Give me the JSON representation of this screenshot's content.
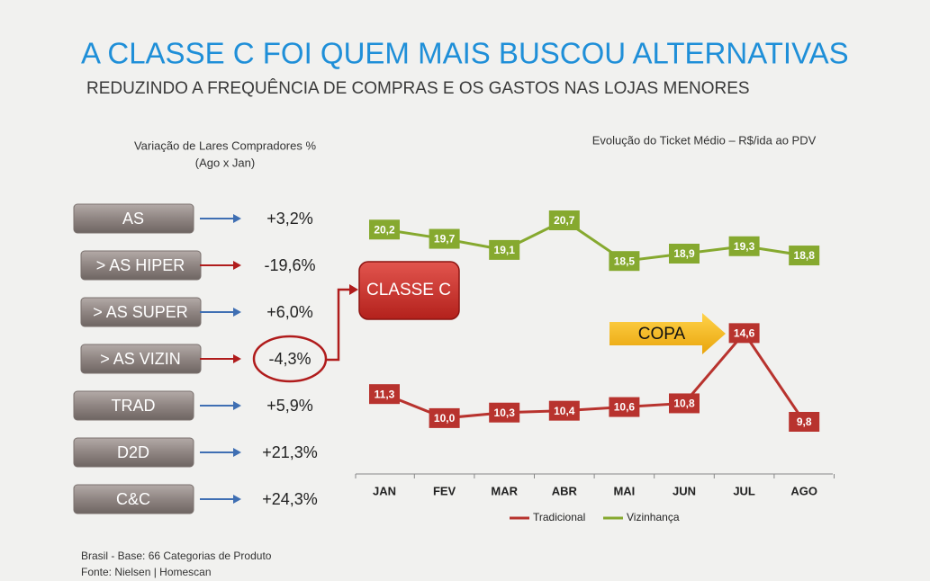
{
  "header": {
    "title": "A CLASSE C FOI QUEM MAIS BUSCOU ALTERNATIVAS",
    "subtitle": "REDUZINDO A FREQUÊNCIA DE COMPRAS E OS GASTOS  NAS LOJAS MENORES"
  },
  "left_panel": {
    "title": "Variação de Lares Compradores %",
    "subtitle": "(Ago x Jan)",
    "items": [
      {
        "label": "AS",
        "value": "+3,2%",
        "arrow_color": "#3f6fb3"
      },
      {
        "label": "> AS HIPER",
        "value": "-19,6%",
        "arrow_color": "#b01c1c"
      },
      {
        "label": "> AS SUPER",
        "value": "+6,0%",
        "arrow_color": "#3f6fb3"
      },
      {
        "label": "> AS VIZIN",
        "value": "-4,3%",
        "arrow_color": "#b01c1c"
      },
      {
        "label": "TRAD",
        "value": "+5,9%",
        "arrow_color": "#3f6fb3"
      },
      {
        "label": "D2D",
        "value": "+21,3%",
        "arrow_color": "#3f6fb3"
      },
      {
        "label": "C&C",
        "value": "+24,3%",
        "arrow_color": "#3f6fb3"
      }
    ]
  },
  "callouts": {
    "segment": "CLASSE C",
    "event": "COPA"
  },
  "chart_data": {
    "type": "line",
    "title": "Evolução do Ticket Médio – R$/ida ao PDV",
    "categories": [
      "JAN",
      "FEV",
      "MAR",
      "ABR",
      "MAI",
      "JUN",
      "JUL",
      "AGO"
    ],
    "series": [
      {
        "name": "Tradicional",
        "color": "#b8332e",
        "values": [
          11.3,
          10.0,
          10.3,
          10.4,
          10.6,
          10.8,
          14.6,
          9.8
        ],
        "value_labels": [
          "11,3",
          "10,0",
          "10,3",
          "10,4",
          "10,6",
          "10,8",
          "14,6",
          "9,8"
        ]
      },
      {
        "name": "Vizinhança",
        "color": "#86a92f",
        "values": [
          20.2,
          19.7,
          19.1,
          20.7,
          18.5,
          18.9,
          19.3,
          18.8
        ],
        "value_labels": [
          "20,2",
          "19,7",
          "19,1",
          "20,7",
          "18,5",
          "18,9",
          "19,3",
          "18,8"
        ]
      }
    ]
  },
  "footer": {
    "lines": [
      "Brasil -  Base: 66 Categorias de Produto",
      "Fonte: Nielsen | Homescan"
    ]
  }
}
